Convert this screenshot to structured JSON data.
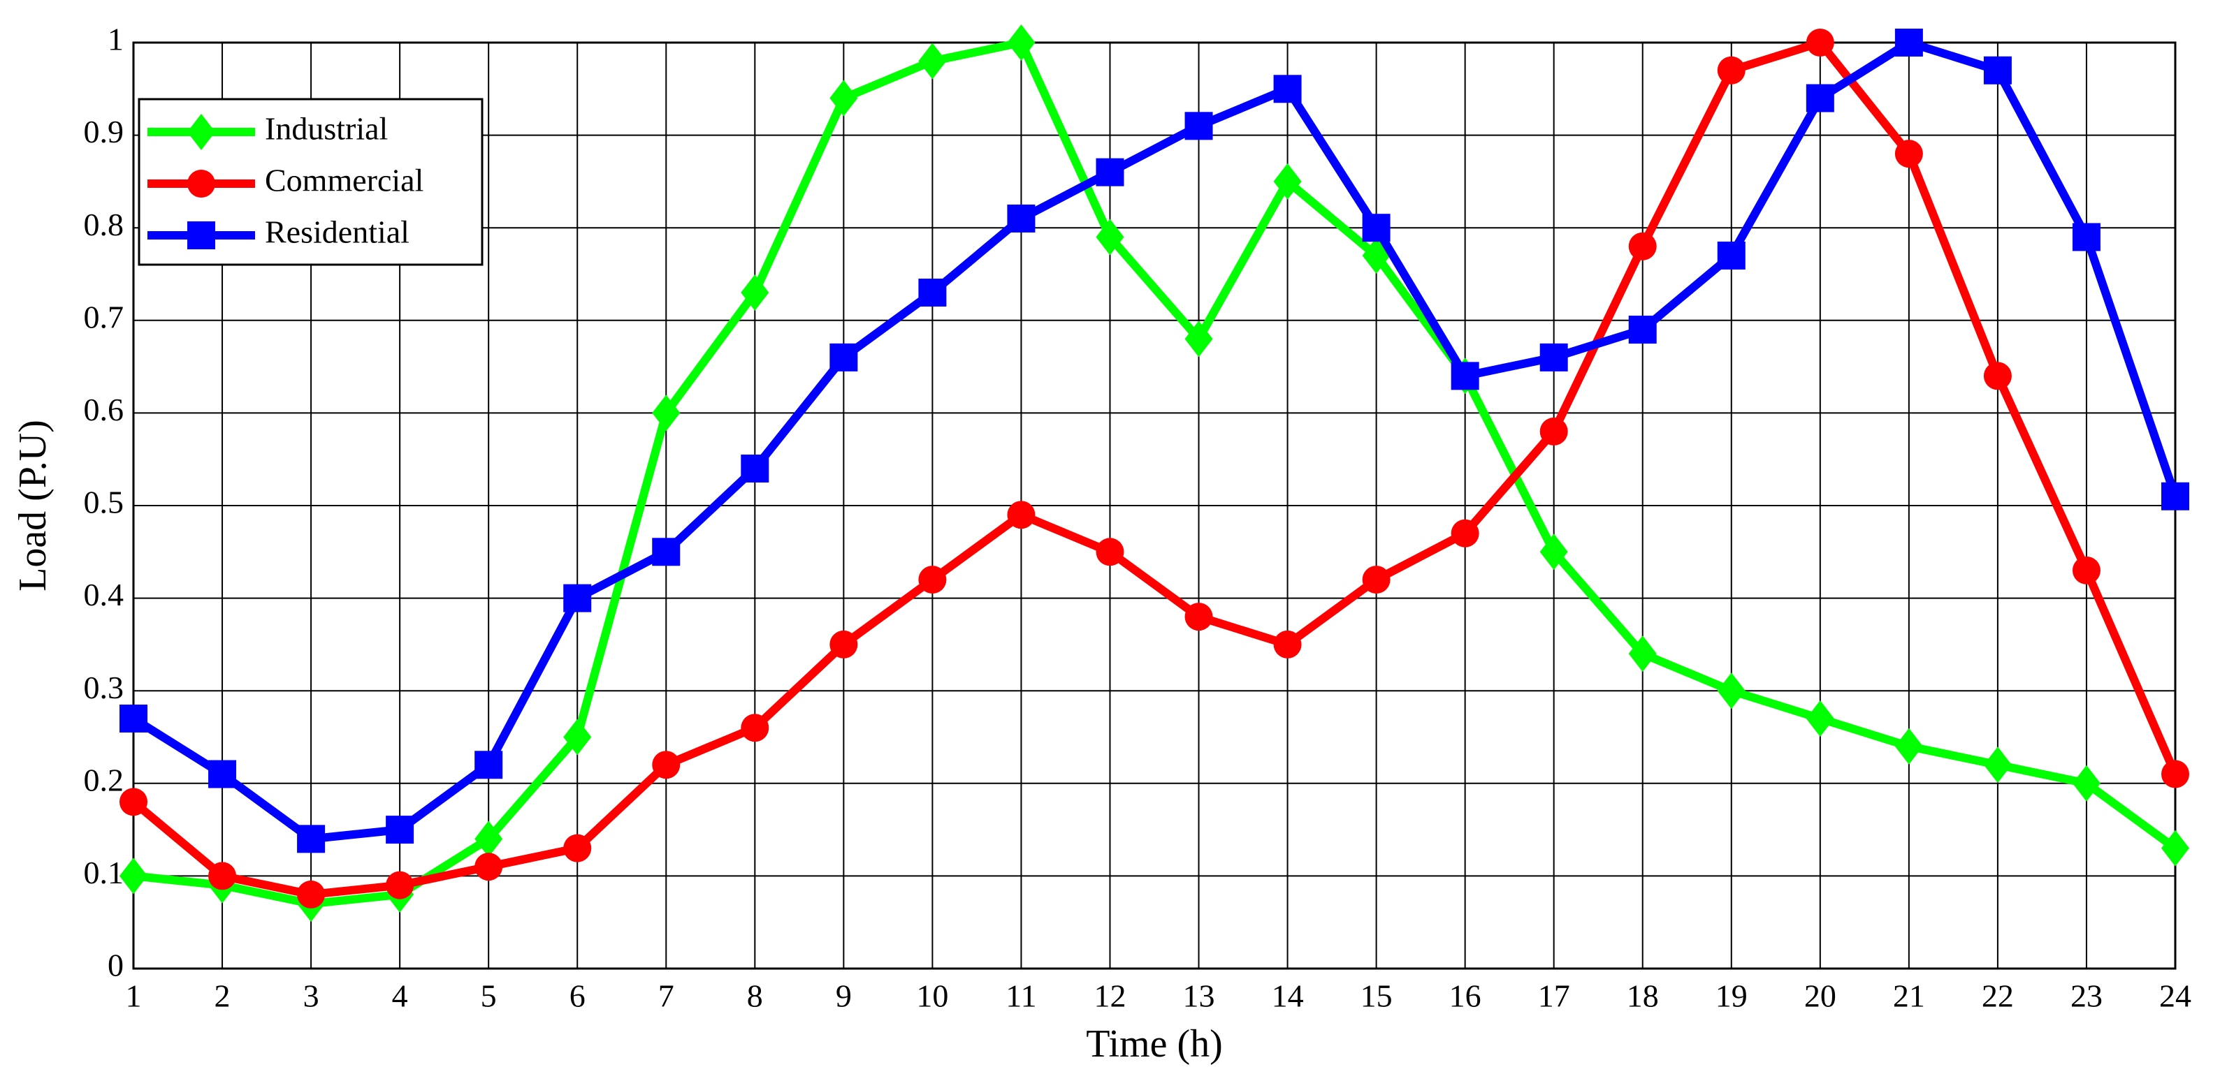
{
  "chart_data": {
    "type": "line",
    "xlabel": "Time (h)",
    "ylabel": "Load (P.U)",
    "x": [
      1,
      2,
      3,
      4,
      5,
      6,
      7,
      8,
      9,
      10,
      11,
      12,
      13,
      14,
      15,
      16,
      17,
      18,
      19,
      20,
      21,
      22,
      23,
      24
    ],
    "series": [
      {
        "name": "Industrial",
        "color": "#00ff00",
        "marker": "diamond",
        "values": [
          0.1,
          0.09,
          0.07,
          0.08,
          0.14,
          0.25,
          0.6,
          0.73,
          0.94,
          0.98,
          1.0,
          0.79,
          0.68,
          0.85,
          0.77,
          0.64,
          0.45,
          0.34,
          0.3,
          0.27,
          0.24,
          0.22,
          0.2,
          0.13
        ]
      },
      {
        "name": "Commercial",
        "color": "#ff0000",
        "marker": "circle",
        "values": [
          0.18,
          0.1,
          0.08,
          0.09,
          0.11,
          0.13,
          0.22,
          0.26,
          0.35,
          0.42,
          0.49,
          0.45,
          0.38,
          0.35,
          0.42,
          0.47,
          0.58,
          0.78,
          0.97,
          1.0,
          0.88,
          0.64,
          0.43,
          0.21
        ]
      },
      {
        "name": "Residential",
        "color": "#0000ff",
        "marker": "square",
        "values": [
          0.27,
          0.21,
          0.14,
          0.15,
          0.22,
          0.4,
          0.45,
          0.54,
          0.66,
          0.73,
          0.81,
          0.86,
          0.91,
          0.95,
          0.8,
          0.64,
          0.66,
          0.69,
          0.77,
          0.94,
          1.0,
          0.97,
          0.79,
          0.51
        ]
      }
    ],
    "xlim": [
      1,
      24
    ],
    "xticks": [
      1,
      2,
      3,
      4,
      5,
      6,
      7,
      8,
      9,
      10,
      11,
      12,
      13,
      14,
      15,
      16,
      17,
      18,
      19,
      20,
      21,
      22,
      23,
      24
    ],
    "ylim": [
      0,
      1
    ],
    "yticks": [
      0,
      0.1,
      0.2,
      0.3,
      0.4,
      0.5,
      0.6,
      0.7,
      0.8,
      0.9,
      1
    ],
    "grid": true,
    "legend": "upper left"
  }
}
